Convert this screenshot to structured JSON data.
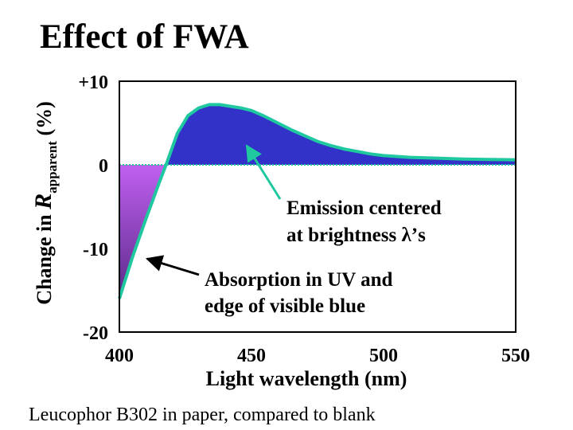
{
  "slide": {
    "title": "Effect of  FWA",
    "caption": "Leucophor B302 in paper, compared to blank"
  },
  "chart_data": {
    "type": "area",
    "xlabel": "Light wavelength  (nm)",
    "ylabel": {
      "prefix": "Change in ",
      "symbol": "R",
      "subscript": "apparent",
      "suffix": "  (%)"
    },
    "xlim": [
      400,
      550
    ],
    "ylim": [
      -20,
      10
    ],
    "x_ticks": [
      "400",
      "450",
      "500",
      "550"
    ],
    "y_ticks": [
      "+10",
      "0",
      "-10",
      "-20"
    ],
    "x_tick_values": [
      400,
      450,
      500,
      550
    ],
    "y_tick_values": [
      10,
      0,
      -10,
      -20
    ],
    "grid": false,
    "series": [
      {
        "x": [
          400,
          405,
          410,
          415,
          418,
          422,
          426,
          430,
          434,
          438,
          442,
          446,
          450,
          455,
          460,
          465,
          470,
          475,
          480,
          485,
          490,
          495,
          500,
          505,
          510,
          515,
          520,
          530,
          540,
          550
        ],
        "values": [
          -16,
          -11,
          -6.5,
          -2.2,
          0.3,
          3.8,
          5.9,
          6.8,
          7.2,
          7.2,
          7.0,
          6.8,
          6.5,
          5.8,
          5.0,
          4.2,
          3.5,
          2.8,
          2.3,
          1.9,
          1.6,
          1.3,
          1.1,
          1.0,
          0.9,
          0.85,
          0.8,
          0.7,
          0.65,
          0.6
        ]
      }
    ],
    "colors": {
      "line": "#20c8a0",
      "emission_fill": "#3232c8",
      "absorption_top": "#c060f0",
      "absorption_bottom": "#5a2a88",
      "zero_line": "#20c8a0"
    },
    "annotations": [
      {
        "lines": [
          "Emission centered",
          "at brightness λ’s"
        ]
      },
      {
        "lines": [
          "Absorption in UV and",
          "edge of visible blue"
        ]
      }
    ]
  }
}
